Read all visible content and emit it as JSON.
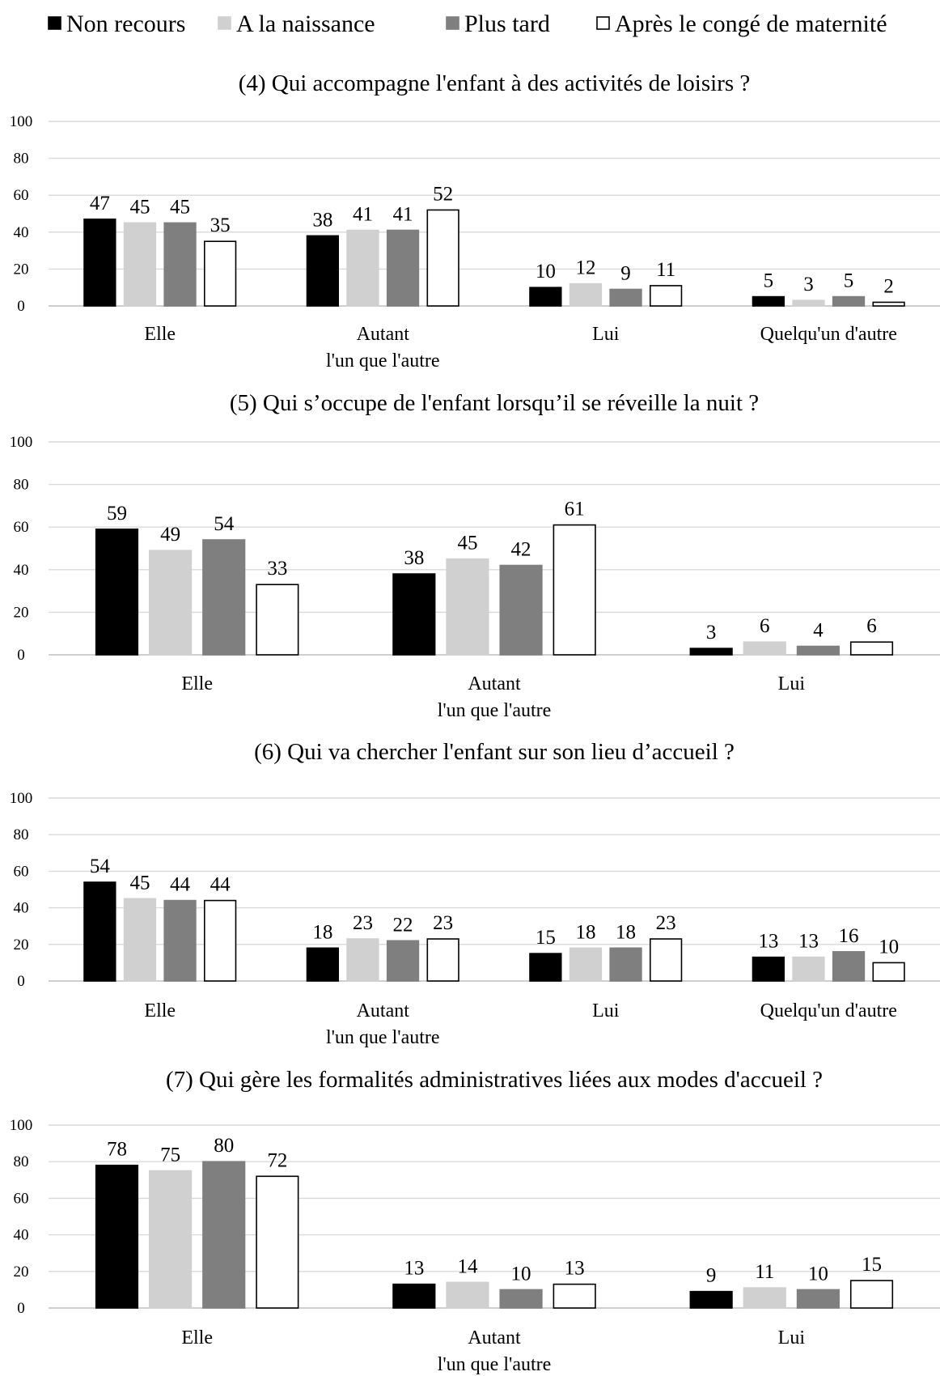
{
  "legend": [
    {
      "name": "Non recours",
      "fill": "#000000",
      "stroke": "#000000"
    },
    {
      "name": "A la naissance",
      "fill": "#d0d0d0",
      "stroke": "#d0d0d0"
    },
    {
      "name": "Plus tard",
      "fill": "#7f7f7f",
      "stroke": "#7f7f7f"
    },
    {
      "name": "Après le congé de maternité",
      "fill": "#ffffff",
      "stroke": "#000000"
    }
  ],
  "chart_data": [
    {
      "type": "bar",
      "title": "(4) Qui accompagne l'enfant à des activités de loisirs ?",
      "categories": [
        "Elle",
        "Autant\nl'un que l'autre",
        "Lui",
        "Quelqu'un d'autre"
      ],
      "ylim": [
        0,
        100
      ],
      "yticks": [
        0,
        20,
        40,
        60,
        80,
        100
      ],
      "grid": true,
      "legend_position": "top",
      "series": [
        {
          "name": "Non recours",
          "values": [
            47,
            38,
            10,
            5
          ]
        },
        {
          "name": "A la naissance",
          "values": [
            45,
            41,
            12,
            3
          ]
        },
        {
          "name": "Plus tard",
          "values": [
            45,
            41,
            9,
            5
          ]
        },
        {
          "name": "Après le congé de maternité",
          "values": [
            35,
            52,
            11,
            2
          ]
        }
      ]
    },
    {
      "type": "bar",
      "title": "(5) Qui s’occupe de l'enfant lorsqu’il se réveille la nuit ?",
      "categories": [
        "Elle",
        "Autant\nl'un que l'autre",
        "Lui"
      ],
      "ylim": [
        0,
        100
      ],
      "yticks": [
        0,
        20,
        40,
        60,
        80,
        100
      ],
      "grid": true,
      "series": [
        {
          "name": "Non recours",
          "values": [
            59,
            38,
            3
          ]
        },
        {
          "name": "A la naissance",
          "values": [
            49,
            45,
            6
          ]
        },
        {
          "name": "Plus tard",
          "values": [
            54,
            42,
            4
          ]
        },
        {
          "name": "Après le congé de maternité",
          "values": [
            33,
            61,
            6
          ]
        }
      ]
    },
    {
      "type": "bar",
      "title": "(6) Qui va chercher l'enfant sur son lieu d’accueil ?",
      "categories": [
        "Elle",
        "Autant\nl'un que l'autre",
        "Lui",
        "Quelqu'un d'autre"
      ],
      "ylim": [
        0,
        100
      ],
      "yticks": [
        0,
        20,
        40,
        60,
        80,
        100
      ],
      "grid": true,
      "series": [
        {
          "name": "Non recours",
          "values": [
            54,
            18,
            15,
            13
          ]
        },
        {
          "name": "A la naissance",
          "values": [
            45,
            23,
            18,
            13
          ]
        },
        {
          "name": "Plus tard",
          "values": [
            44,
            22,
            18,
            16
          ]
        },
        {
          "name": "Après le congé de maternité",
          "values": [
            44,
            23,
            23,
            10
          ]
        }
      ]
    },
    {
      "type": "bar",
      "title": "(7) Qui gère les formalités administratives liées aux modes d'accueil ?",
      "categories": [
        "Elle",
        "Autant\nl'un que l'autre",
        "Lui"
      ],
      "ylim": [
        0,
        100
      ],
      "yticks": [
        0,
        20,
        40,
        60,
        80,
        100
      ],
      "grid": true,
      "series": [
        {
          "name": "Non recours",
          "values": [
            78,
            13,
            9
          ]
        },
        {
          "name": "A la naissance",
          "values": [
            75,
            14,
            11
          ]
        },
        {
          "name": "Plus tard",
          "values": [
            80,
            10,
            10
          ]
        },
        {
          "name": "Après le congé de maternité",
          "values": [
            72,
            13,
            15
          ]
        }
      ]
    }
  ]
}
